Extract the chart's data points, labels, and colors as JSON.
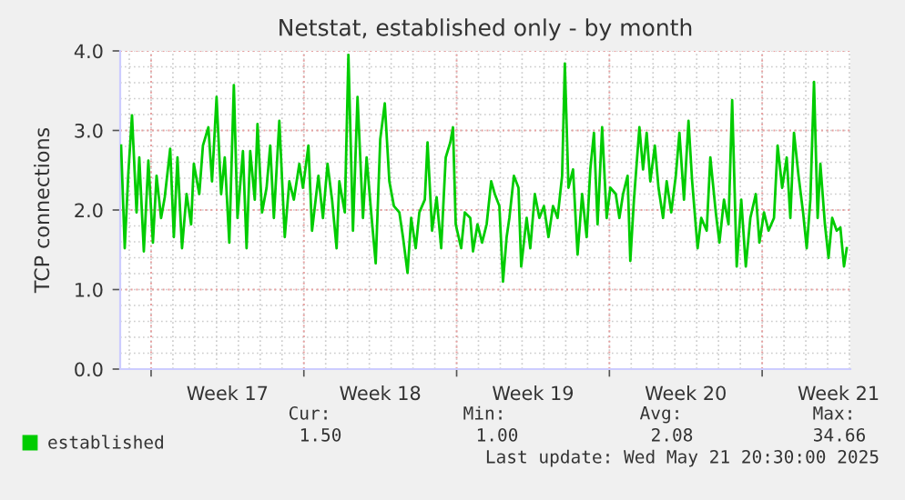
{
  "chart_data": {
    "type": "line",
    "title": "Netstat, established only - by month",
    "ylabel": "TCP connections",
    "xlim": [
      "2025-04-18T14:00",
      "2025-05-22T01:00"
    ],
    "ylim": [
      0,
      4
    ],
    "xticks": [
      {
        "value": "2025-04-20T00:00",
        "label": null
      },
      {
        "value": "2025-04-23T12:00",
        "label": "Week 17"
      },
      {
        "value": "2025-04-27T00:00",
        "label": null
      },
      {
        "value": "2025-04-30T12:00",
        "label": "Week 18"
      },
      {
        "value": "2025-05-04T00:00",
        "label": null
      },
      {
        "value": "2025-05-07T12:00",
        "label": "Week 19"
      },
      {
        "value": "2025-05-11T00:00",
        "label": null
      },
      {
        "value": "2025-05-14T12:00",
        "label": "Week 20"
      },
      {
        "value": "2025-05-18T00:00",
        "label": null
      },
      {
        "value": "2025-05-21T12:00",
        "label": "Week 21"
      }
    ],
    "yticks": [
      {
        "value": 0,
        "label": "0.0"
      },
      {
        "value": 1,
        "label": "1.0"
      },
      {
        "value": 2,
        "label": "2.0"
      },
      {
        "value": 3,
        "label": "3.0"
      },
      {
        "value": 4,
        "label": "4.0"
      }
    ],
    "grid": true,
    "legend": "bottom",
    "marker": "none",
    "line_style": "solid",
    "annotations": [
      "Cur:",
      "1.50",
      "Min:",
      "1.00",
      "Avg:",
      "2.08",
      "Max:",
      "34.66",
      "Last update: Wed May 21 20:30:00 2025"
    ],
    "series": [
      {
        "name": "established",
        "color": "#00cc00",
        "x": [
          "2025-04-18T15:00",
          "2025-04-18T19:00",
          "2025-04-18T23:00",
          "2025-04-19T03:00",
          "2025-04-19T08:00",
          "2025-04-19T11:00",
          "2025-04-19T16:00",
          "2025-04-19T21:00",
          "2025-04-20T02:00",
          "2025-04-20T06:00",
          "2025-04-20T11:00",
          "2025-04-20T15:00",
          "2025-04-20T21:00",
          "2025-04-21T01:00",
          "2025-04-21T05:00",
          "2025-04-21T10:00",
          "2025-04-21T15:00",
          "2025-04-21T20:00",
          "2025-04-21T23:00",
          "2025-04-22T05:00",
          "2025-04-22T09:00",
          "2025-04-22T15:00",
          "2025-04-22T19:00",
          "2025-04-23T00:00",
          "2025-04-23T05:00",
          "2025-04-23T09:00",
          "2025-04-23T14:00",
          "2025-04-23T19:00",
          "2025-04-23T23:00",
          "2025-04-24T05:00",
          "2025-04-24T09:00",
          "2025-04-24T13:00",
          "2025-04-24T18:00",
          "2025-04-24T21:00",
          "2025-04-25T02:00",
          "2025-04-25T07:00",
          "2025-04-25T11:00",
          "2025-04-25T15:00",
          "2025-04-25T21:00",
          "2025-04-26T03:00",
          "2025-04-26T08:00",
          "2025-04-26T13:00",
          "2025-04-26T19:00",
          "2025-04-26T23:00",
          "2025-04-27T05:00",
          "2025-04-27T09:00",
          "2025-04-27T16:00",
          "2025-04-27T21:00",
          "2025-04-28T02:00",
          "2025-04-28T07:00",
          "2025-04-28T12:00",
          "2025-04-28T15:00",
          "2025-04-28T21:00",
          "2025-04-29T01:00",
          "2025-04-29T06:00",
          "2025-04-29T11:00",
          "2025-04-29T17:00",
          "2025-04-29T21:00",
          "2025-04-30T02:00",
          "2025-04-30T07:00",
          "2025-04-30T12:00",
          "2025-04-30T17:00",
          "2025-04-30T22:00",
          "2025-05-01T03:00",
          "2025-05-01T09:00",
          "2025-05-01T13:00",
          "2025-05-01T18:00",
          "2025-05-01T22:00",
          "2025-05-02T03:00",
          "2025-05-02T07:00",
          "2025-05-02T13:00",
          "2025-05-02T16:00",
          "2025-05-02T21:00",
          "2025-05-03T02:00",
          "2025-05-03T07:00",
          "2025-05-03T12:00",
          "2025-05-03T17:00",
          "2025-05-03T20:00",
          "2025-05-03T23:00",
          "2025-05-04T05:00",
          "2025-05-04T09:00",
          "2025-05-04T15:00",
          "2025-05-04T18:00",
          "2025-05-04T23:00",
          "2025-05-05T04:00",
          "2025-05-05T09:00",
          "2025-05-05T14:00",
          "2025-05-05T18:00",
          "2025-05-05T23:00",
          "2025-05-06T03:00",
          "2025-05-06T07:00",
          "2025-05-06T10:00",
          "2025-05-06T15:00",
          "2025-05-06T20:00",
          "2025-05-06T23:00",
          "2025-05-07T05:00",
          "2025-05-07T09:00",
          "2025-05-07T14:00",
          "2025-05-07T19:00",
          "2025-05-08T00:00",
          "2025-05-08T05:00",
          "2025-05-08T10:00",
          "2025-05-08T15:00",
          "2025-05-08T20:00",
          "2025-05-08T23:00",
          "2025-05-09T03:00",
          "2025-05-09T08:00",
          "2025-05-09T13:00",
          "2025-05-09T18:00",
          "2025-05-09T23:00",
          "2025-05-10T03:00",
          "2025-05-10T07:00",
          "2025-05-10T11:00",
          "2025-05-10T16:00",
          "2025-05-10T21:00",
          "2025-05-11T01:00",
          "2025-05-11T07:00",
          "2025-05-11T11:00",
          "2025-05-11T15:00",
          "2025-05-11T20:00",
          "2025-05-11T23:00",
          "2025-05-12T03:00",
          "2025-05-12T09:00",
          "2025-05-12T13:00",
          "2025-05-12T17:00",
          "2025-05-12T21:00",
          "2025-05-13T02:00",
          "2025-05-13T06:00",
          "2025-05-13T11:00",
          "2025-05-13T15:00",
          "2025-05-13T20:00",
          "2025-05-14T01:00",
          "2025-05-14T05:00",
          "2025-05-14T10:00",
          "2025-05-14T15:00",
          "2025-05-14T19:00",
          "2025-05-15T01:00",
          "2025-05-15T05:00",
          "2025-05-15T11:00",
          "2025-05-15T15:00",
          "2025-05-15T21:00",
          "2025-05-16T01:00",
          "2025-05-16T06:00",
          "2025-05-16T11:00",
          "2025-05-16T15:00",
          "2025-05-16T20:00",
          "2025-05-17T01:00",
          "2025-05-17T06:00",
          "2025-05-17T11:00",
          "2025-05-17T17:00",
          "2025-05-17T21:00",
          "2025-05-18T02:00",
          "2025-05-18T07:00",
          "2025-05-18T13:00",
          "2025-05-18T17:00",
          "2025-05-18T22:00",
          "2025-05-19T03:00",
          "2025-05-19T07:00",
          "2025-05-19T11:00",
          "2025-05-19T16:00",
          "2025-05-19T21:00",
          "2025-05-20T01:00",
          "2025-05-20T05:00",
          "2025-05-20T09:00",
          "2025-05-20T13:00",
          "2025-05-20T16:00",
          "2025-05-20T21:00",
          "2025-05-21T01:00",
          "2025-05-21T05:00",
          "2025-05-21T10:00",
          "2025-05-21T14:00",
          "2025-05-21T18:00",
          "2025-05-21T21:00"
        ],
        "values": [
          2.81,
          1.52,
          2.47,
          3.19,
          1.97,
          2.66,
          1.48,
          2.62,
          1.59,
          2.43,
          1.9,
          2.16,
          2.77,
          1.66,
          2.66,
          1.52,
          2.2,
          1.82,
          2.58,
          2.2,
          2.81,
          3.04,
          2.36,
          3.42,
          2.2,
          2.66,
          1.59,
          3.57,
          1.9,
          2.74,
          1.52,
          2.74,
          2.13,
          3.08,
          1.97,
          2.28,
          2.81,
          1.9,
          3.12,
          1.66,
          2.36,
          2.13,
          2.58,
          2.28,
          2.81,
          1.74,
          2.43,
          1.9,
          2.58,
          2.13,
          1.52,
          2.36,
          1.97,
          3.95,
          1.74,
          3.42,
          1.9,
          2.66,
          1.97,
          1.33,
          2.89,
          3.34,
          2.36,
          2.05,
          1.97,
          1.66,
          1.21,
          1.9,
          1.52,
          1.97,
          2.13,
          2.85,
          1.74,
          2.16,
          1.52,
          2.66,
          2.85,
          3.04,
          1.82,
          1.52,
          1.97,
          1.9,
          1.48,
          1.82,
          1.59,
          1.82,
          2.36,
          2.2,
          2.05,
          1.1,
          1.66,
          1.9,
          2.43,
          2.28,
          1.29,
          1.9,
          1.52,
          2.2,
          1.9,
          2.05,
          1.66,
          2.05,
          1.9,
          2.43,
          3.84,
          2.28,
          2.51,
          1.44,
          2.2,
          1.66,
          2.51,
          2.97,
          1.82,
          3.04,
          1.9,
          2.28,
          2.2,
          1.9,
          2.2,
          2.43,
          1.36,
          2.13,
          3.04,
          2.51,
          2.97,
          2.36,
          2.81,
          2.28,
          1.9,
          2.36,
          1.97,
          2.43,
          2.97,
          2.13,
          3.12,
          2.36,
          1.52,
          1.9,
          1.74,
          2.66,
          1.97,
          1.59,
          2.13,
          1.82,
          3.38,
          1.29,
          2.13,
          1.29,
          1.9,
          2.2,
          1.59,
          1.97,
          1.74,
          1.9,
          2.81,
          2.28,
          2.66,
          1.9,
          2.97,
          2.43,
          1.97,
          1.52,
          2.13,
          3.61,
          1.9,
          2.58,
          1.82,
          1.4,
          1.9,
          1.74,
          1.78,
          1.29,
          1.52
        ]
      }
    ]
  }
}
